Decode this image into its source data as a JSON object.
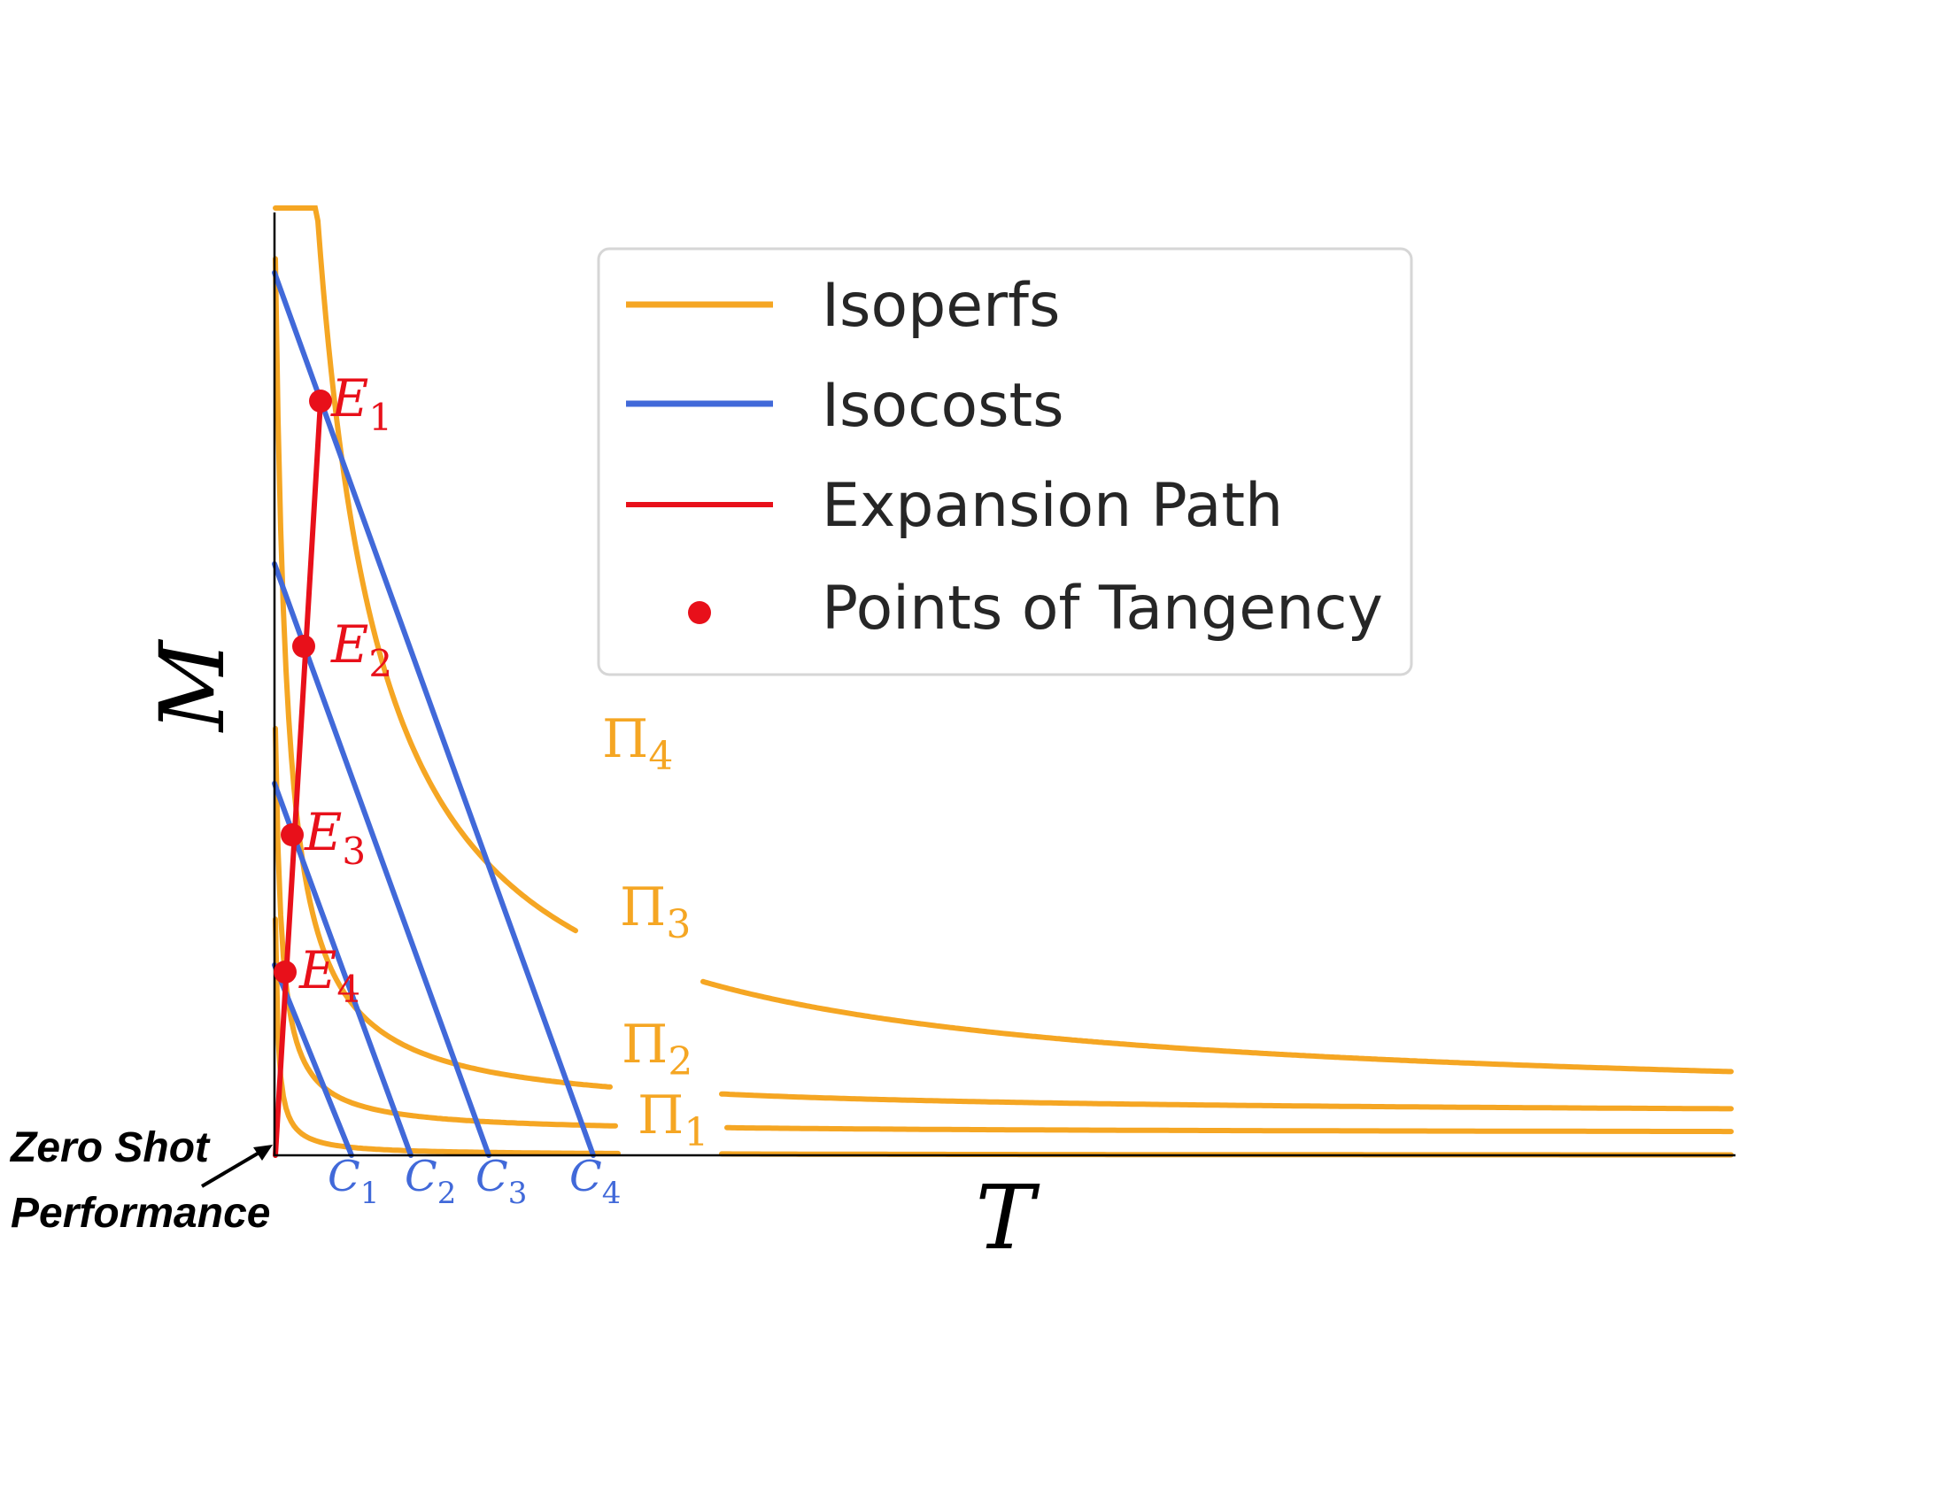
{
  "colors": {
    "isoperf": "#F5A623",
    "isocost": "#4169D9",
    "expansion": "#E8101A",
    "axis": "#000000"
  },
  "axes": {
    "xlabel": "T",
    "ylabel": "M"
  },
  "legend": {
    "items": [
      {
        "label": "Isoperfs",
        "kind": "line",
        "color_key": "isoperf"
      },
      {
        "label": "Isocosts",
        "kind": "line",
        "color_key": "isocost"
      },
      {
        "label": "Expansion Path",
        "kind": "line",
        "color_key": "expansion"
      },
      {
        "label": "Points of Tangency",
        "kind": "dot",
        "color_key": "expansion"
      }
    ]
  },
  "isoperfs": [
    {
      "symbol": "Π",
      "sub": "1"
    },
    {
      "symbol": "Π",
      "sub": "2"
    },
    {
      "symbol": "Π",
      "sub": "3"
    },
    {
      "symbol": "Π",
      "sub": "4"
    }
  ],
  "isocosts": [
    {
      "symbol": "C",
      "sub": "1"
    },
    {
      "symbol": "C",
      "sub": "2"
    },
    {
      "symbol": "C",
      "sub": "3"
    },
    {
      "symbol": "C",
      "sub": "4"
    }
  ],
  "tangency_points": [
    {
      "symbol": "E",
      "sub": "1"
    },
    {
      "symbol": "E",
      "sub": "2"
    },
    {
      "symbol": "E",
      "sub": "3"
    },
    {
      "symbol": "E",
      "sub": "4"
    }
  ],
  "annotation": {
    "line1": "Zero Shot",
    "line2": "Performance"
  }
}
